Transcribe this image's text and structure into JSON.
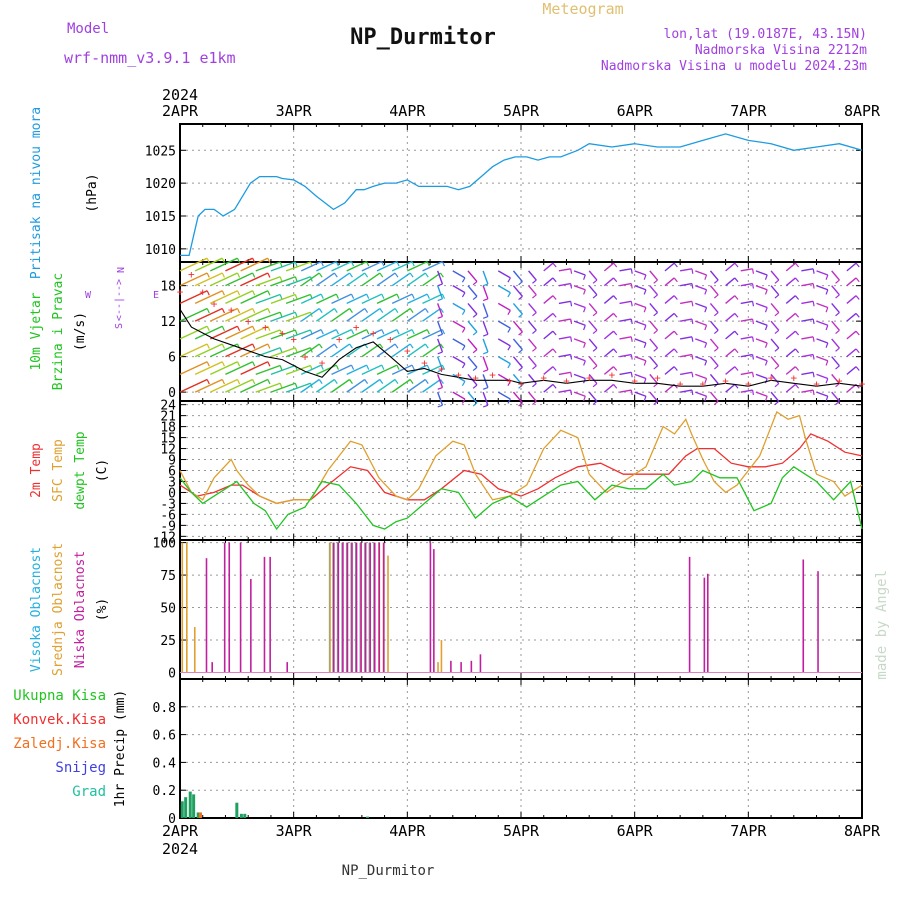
{
  "header": {
    "title": "NP_Durmitor",
    "meteogram_label": "Meteogram",
    "model_label": "Model",
    "model_name": "wrf-nmm_v3.9.1 e1km",
    "info_lines": [
      "lon,lat (19.0187E, 43.15N)",
      "Nadmorska Visina 2212m",
      "Nadmorska Visina u modelu 2024.23m"
    ]
  },
  "footer": {
    "station": "NP_Durmitor",
    "watermark": "made by Angel"
  },
  "wind_compass": {
    "n": "N",
    "w": "W",
    "e": "E",
    "s": "S",
    "arrows": "<--|-->"
  },
  "colors": {
    "pressure": "#1e9be0",
    "tmp2m": "#f03030",
    "sfc": "#e0a030",
    "dew": "#22c422",
    "high_cloud": "#22b0e0",
    "mid_cloud": "#e0a030",
    "low_cloud": "#c020a0",
    "precip_total": "#22c422",
    "precip_conv": "#f03030",
    "precip_frz": "#f07020",
    "snow": "#4040e0",
    "hail": "#20c0a0",
    "label_purple": "#a040e0",
    "wind_speed": "#000000",
    "wind_gust": "#f03030"
  },
  "chart_data": [
    {
      "type": "line",
      "name": "pressure",
      "ylabel_lines": [
        "Pritisak na nivou mora",
        "(hPa)"
      ],
      "x_year_label": "2024",
      "x_ticks": [
        "2APR",
        "3APR",
        "4APR",
        "5APR",
        "6APR",
        "7APR",
        "8APR"
      ],
      "xlim": [
        0,
        6
      ],
      "ylim": [
        1008,
        1029
      ],
      "yticks": [
        1010,
        1015,
        1020,
        1025
      ],
      "series": [
        {
          "x": [
            0,
            0.08,
            0.12,
            0.16,
            0.22,
            0.3,
            0.38,
            0.48,
            0.55,
            0.62,
            0.7,
            0.78,
            0.85,
            0.9,
            1.0,
            1.1,
            1.2,
            1.35,
            1.45,
            1.55,
            1.62,
            1.7,
            1.8,
            1.9,
            2.0,
            2.1,
            2.25,
            2.35,
            2.45,
            2.55,
            2.65,
            2.75,
            2.85,
            2.95,
            3.05,
            3.15,
            3.25,
            3.35,
            3.5,
            3.6,
            3.8,
            4.0,
            4.2,
            4.4,
            4.6,
            4.8,
            5.0,
            5.2,
            5.4,
            5.6,
            5.8,
            6.0
          ],
          "values": [
            1009,
            1009,
            1012,
            1015,
            1016,
            1016,
            1015,
            1016,
            1018,
            1020,
            1021,
            1021,
            1021,
            1020.7,
            1020.5,
            1019.5,
            1018,
            1016,
            1017,
            1019,
            1019,
            1019.5,
            1020,
            1020,
            1020.5,
            1019.5,
            1019.5,
            1019.5,
            1019,
            1019.5,
            1021,
            1022.5,
            1023.5,
            1024,
            1024,
            1023.5,
            1024,
            1024,
            1025,
            1026,
            1025.5,
            1026,
            1025.5,
            1025.5,
            1026.5,
            1027.5,
            1026.5,
            1026,
            1025,
            1025.5,
            1026,
            1025
          ]
        }
      ]
    },
    {
      "type": "line",
      "name": "wind",
      "ylabel_lines": [
        "10m Vjetar",
        "Brzina i Pravac",
        "(m/s)"
      ],
      "xlim": [
        0,
        6
      ],
      "ylim": [
        -1.5,
        22
      ],
      "yticks": [
        0,
        6,
        12,
        18
      ],
      "series": [
        {
          "name": "speed",
          "x": [
            0,
            0.1,
            0.2,
            0.3,
            0.45,
            0.6,
            0.75,
            0.9,
            1.0,
            1.1,
            1.25,
            1.4,
            1.55,
            1.7,
            1.85,
            2.0,
            2.15,
            2.3,
            2.45,
            2.6,
            2.75,
            2.9,
            3.0,
            3.2,
            3.4,
            3.6,
            3.8,
            4.0,
            4.2,
            4.4,
            4.6,
            4.8,
            5.0,
            5.2,
            5.4,
            5.6,
            5.8,
            6.0
          ],
          "values": [
            14,
            11,
            10,
            9,
            8,
            7,
            6,
            5.5,
            4.5,
            3.5,
            2.5,
            5.5,
            7.5,
            8.5,
            6,
            3.5,
            4,
            3,
            2.5,
            2,
            2,
            2,
            1.5,
            2,
            1.5,
            2,
            2,
            1.5,
            1.5,
            1,
            1,
            1.5,
            1,
            2,
            1.5,
            1,
            1.5,
            1
          ]
        },
        {
          "name": "gust",
          "x": [
            0,
            0.1,
            0.2,
            0.3,
            0.45,
            0.6,
            0.75,
            0.9,
            1.0,
            1.1,
            1.25,
            1.4,
            1.55,
            1.7,
            1.85,
            2.0,
            2.15,
            2.3,
            2.45,
            2.6,
            2.75,
            2.9,
            3.0,
            3.2,
            3.4,
            3.6,
            3.8,
            4.0,
            4.2,
            4.4,
            4.6,
            4.8,
            5.0,
            5.2,
            5.4,
            5.6,
            5.8,
            6.0
          ],
          "values": [
            17,
            20,
            17,
            15,
            14,
            12,
            11,
            10,
            9,
            6,
            5,
            9,
            11,
            10,
            9,
            7,
            5,
            4,
            3,
            2.5,
            3,
            2,
            1.5,
            2.5,
            2,
            2.5,
            3,
            2,
            2.5,
            1.5,
            1.5,
            2,
            1.5,
            2.5,
            2.5,
            1.5,
            2,
            1.5
          ]
        }
      ]
    },
    {
      "type": "line",
      "name": "temperature",
      "ylabel_lines": [
        "2m Temp",
        "SFC Temp",
        "dewpt Temp",
        "(C)"
      ],
      "xlim": [
        0,
        6
      ],
      "ylim": [
        -13,
        25
      ],
      "yticks": [
        -12,
        -9,
        -6,
        -3,
        0,
        3,
        6,
        9,
        12,
        15,
        18,
        21,
        24
      ],
      "series": [
        {
          "name": "2m Temp",
          "x": [
            0,
            0.15,
            0.3,
            0.45,
            0.55,
            0.7,
            0.85,
            1.0,
            1.15,
            1.3,
            1.5,
            1.65,
            1.8,
            2.0,
            2.15,
            2.3,
            2.5,
            2.65,
            2.8,
            3.0,
            3.15,
            3.3,
            3.5,
            3.7,
            3.9,
            4.1,
            4.3,
            4.45,
            4.55,
            4.7,
            4.85,
            5.0,
            5.15,
            5.3,
            5.45,
            5.55,
            5.7,
            5.85,
            6.0
          ],
          "values": [
            2,
            -1,
            0,
            2,
            2,
            -1,
            -3,
            -2,
            -2,
            2,
            7,
            6,
            0,
            -2,
            -2,
            1,
            6,
            5,
            1,
            -1,
            1,
            4,
            7,
            8,
            5,
            5,
            5,
            10,
            12,
            12,
            8,
            7,
            7,
            8,
            12,
            16,
            14,
            11,
            10
          ]
        },
        {
          "name": "SFC Temp",
          "x": [
            0,
            0.1,
            0.2,
            0.3,
            0.45,
            0.5,
            0.6,
            0.7,
            0.85,
            1.0,
            1.15,
            1.3,
            1.5,
            1.6,
            1.75,
            1.9,
            2.0,
            2.1,
            2.25,
            2.4,
            2.5,
            2.6,
            2.75,
            2.9,
            3.05,
            3.2,
            3.35,
            3.5,
            3.6,
            3.75,
            3.9,
            4.1,
            4.25,
            4.35,
            4.45,
            4.5,
            4.6,
            4.7,
            4.8,
            4.9,
            5.1,
            5.25,
            5.35,
            5.45,
            5.5,
            5.6,
            5.75,
            5.85,
            6.0
          ],
          "values": [
            6,
            0,
            -2,
            4,
            9,
            6,
            2,
            -1,
            -3,
            -2,
            -2,
            6,
            14,
            13,
            4,
            -1,
            -2,
            1,
            10,
            14,
            13,
            5,
            -2,
            -1,
            2,
            12,
            17,
            15,
            5,
            0,
            3,
            7,
            18,
            16,
            20,
            16,
            9,
            3,
            0,
            2,
            10,
            22,
            20,
            21,
            15,
            5,
            3,
            -1,
            2
          ]
        },
        {
          "name": "dewpt Temp",
          "x": [
            0,
            0.1,
            0.2,
            0.3,
            0.4,
            0.5,
            0.55,
            0.65,
            0.75,
            0.85,
            0.95,
            1.1,
            1.25,
            1.4,
            1.55,
            1.7,
            1.8,
            1.9,
            2.0,
            2.15,
            2.3,
            2.45,
            2.6,
            2.75,
            2.9,
            3.05,
            3.2,
            3.35,
            3.5,
            3.65,
            3.8,
            3.95,
            4.1,
            4.25,
            4.35,
            4.5,
            4.6,
            4.75,
            4.9,
            5.05,
            5.2,
            5.3,
            5.4,
            5.5,
            5.6,
            5.75,
            5.9,
            6.0
          ],
          "values": [
            4,
            0,
            -3,
            -1,
            1,
            3,
            1,
            -3,
            -5,
            -10,
            -6,
            -4,
            3,
            2,
            -3,
            -9,
            -10,
            -8,
            -7,
            -3,
            1,
            0,
            -7,
            -3,
            -1,
            -4,
            -1,
            2,
            3,
            -2,
            2,
            1,
            1,
            5,
            2,
            3,
            6,
            4,
            4,
            -5,
            -3,
            4,
            7,
            5,
            3,
            -2,
            3,
            -10
          ]
        }
      ]
    },
    {
      "type": "bar",
      "name": "clouds",
      "ylabel_lines": [
        "Visoka Oblacnost",
        "Srednja Oblacnost",
        "Niska Oblacnost",
        "(%)"
      ],
      "xlim": [
        0,
        6
      ],
      "ylim": [
        -5,
        102
      ],
      "yticks": [
        0,
        25,
        50,
        75,
        100
      ],
      "series": [
        {
          "name": "Visoka Oblacnost",
          "x": [
            1.33,
            1.36,
            1.4,
            1.44,
            1.48,
            1.52,
            1.56,
            1.6,
            1.64,
            1.68,
            1.72
          ],
          "values": [
            100,
            100,
            100,
            100,
            100,
            100,
            100,
            100,
            100,
            100,
            100
          ]
        },
        {
          "name": "Srednja Oblacnost",
          "x": [
            0.02,
            0.06,
            0.13,
            1.32,
            1.35,
            1.39,
            1.43,
            1.47,
            1.51,
            1.55,
            1.59,
            1.63,
            1.67,
            1.71,
            1.75,
            1.79,
            1.83,
            2.27,
            2.3
          ],
          "values": [
            100,
            100,
            35,
            100,
            100,
            100,
            100,
            100,
            100,
            100,
            100,
            100,
            100,
            100,
            100,
            100,
            90,
            8,
            25
          ]
        },
        {
          "name": "Niska Oblacnost",
          "x": [
            0.22,
            0.27,
            0.38,
            0.42,
            0.52,
            0.61,
            0.73,
            0.78,
            0.93,
            1.34,
            1.38,
            1.42,
            1.46,
            1.5,
            1.54,
            1.58,
            1.62,
            1.66,
            1.7,
            1.74,
            1.78,
            2.19,
            2.22,
            2.37,
            2.46,
            2.55,
            2.63,
            4.47,
            4.6,
            4.63,
            5.47,
            5.6
          ],
          "values": [
            88,
            8,
            100,
            100,
            100,
            72,
            89,
            89,
            8,
            100,
            100,
            100,
            100,
            100,
            100,
            100,
            100,
            100,
            100,
            100,
            100,
            100,
            95,
            9,
            8,
            9,
            14,
            89,
            73,
            76,
            87,
            78
          ]
        }
      ]
    },
    {
      "type": "bar",
      "name": "precipitation",
      "ylabel_lines": [
        "1hr Precip (mm)"
      ],
      "legend": [
        "Ukupna Kisa",
        "Konvek.Kisa",
        "Zaledj.Kisa",
        "Snijeg",
        "Grad"
      ],
      "x_ticks": [
        "2APR",
        "3APR",
        "4APR",
        "5APR",
        "6APR",
        "7APR",
        "8APR"
      ],
      "x_year_label": "2024",
      "xlim": [
        0,
        6
      ],
      "ylim": [
        0,
        1.0
      ],
      "yticks": [
        0,
        0.2,
        0.4,
        0.6,
        0.8
      ],
      "series": [
        {
          "name": "Ukupna Kisa",
          "x": [
            0.02,
            0.05,
            0.09,
            0.12,
            0.16,
            0.5,
            0.54,
            0.57,
            1.65
          ],
          "values": [
            0.12,
            0.15,
            0.19,
            0.17,
            0.04,
            0.11,
            0.03,
            0.03,
            0.01
          ]
        },
        {
          "name": "Zaledj.Kisa",
          "x": [
            0.18
          ],
          "values": [
            0.04
          ]
        }
      ]
    }
  ]
}
